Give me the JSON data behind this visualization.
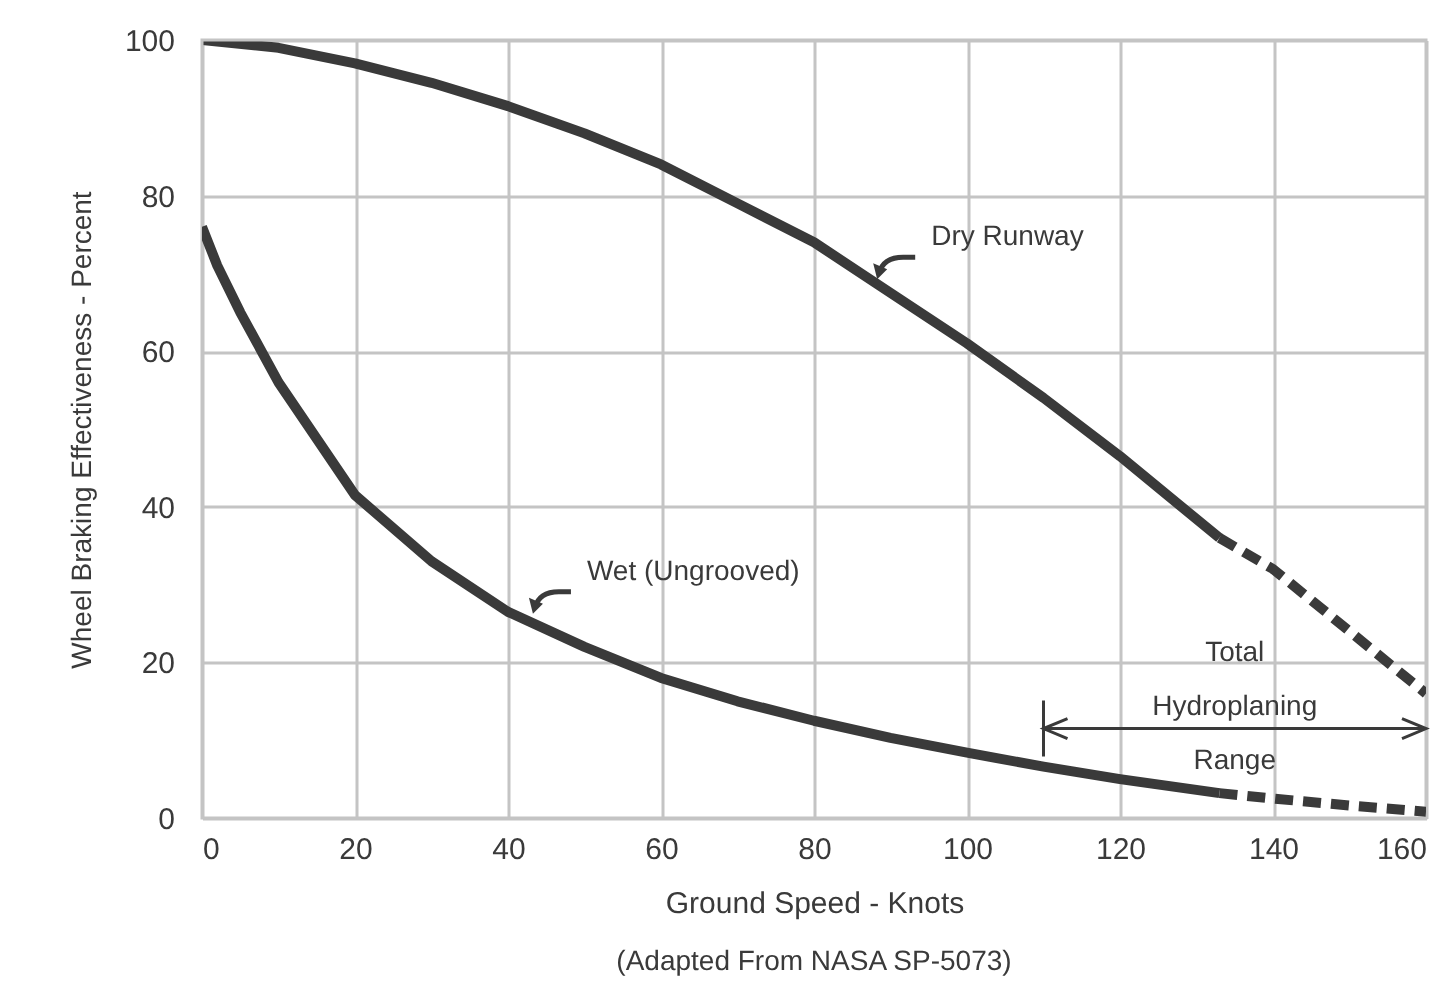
{
  "chart_data": {
    "type": "line",
    "xlabel": "Ground Speed - Knots",
    "ylabel": "Wheel Braking Effectiveness - Percent",
    "xlim": [
      0,
      160
    ],
    "xticks": [
      0,
      20,
      40,
      60,
      80,
      100,
      120,
      140,
      160
    ],
    "ylim": [
      0,
      100
    ],
    "yticks": [
      0,
      20,
      40,
      60,
      80,
      100
    ],
    "grid": true,
    "marker": "none",
    "series": [
      {
        "color": "#3a3a3a",
        "line_style": "solid",
        "x": [
          0,
          10,
          20,
          30,
          40,
          50,
          60,
          70,
          80,
          90,
          100,
          110,
          120,
          133
        ],
        "values": [
          100,
          99,
          97,
          94.5,
          91.5,
          88,
          84,
          79,
          74,
          67.5,
          61,
          54,
          46.5,
          36
        ]
      },
      {
        "color": "#3a3a3a",
        "line_style": "dashed",
        "x": [
          133,
          140,
          150,
          160
        ],
        "values": [
          36,
          32,
          24,
          16
        ]
      },
      {
        "color": "#3a3a3a",
        "line_style": "solid",
        "x": [
          0,
          2,
          5,
          10,
          20,
          30,
          40,
          50,
          60,
          70,
          80,
          90,
          100,
          110,
          120,
          133
        ],
        "values": [
          76,
          71,
          65,
          56,
          41.5,
          33,
          26.5,
          22,
          18,
          15,
          12.5,
          10.3,
          8.4,
          6.6,
          5,
          3.2
        ]
      },
      {
        "color": "#3a3a3a",
        "line_style": "dashed",
        "x": [
          133,
          140,
          150,
          160
        ],
        "values": [
          3.2,
          2.5,
          1.6,
          0.8
        ]
      }
    ],
    "annotations": [
      "Total Hydroplaning Range",
      {
        "text": "Dry Runway",
        "x": 88,
        "y": 69
      },
      {
        "text": "Wet (Ungrooved)",
        "x": 43,
        "y": 26
      },
      "(Adapted From NASA SP-5073)"
    ]
  }
}
